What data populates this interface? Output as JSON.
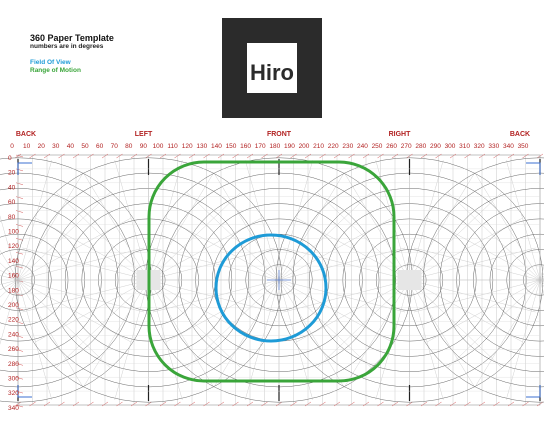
{
  "header": {
    "title": "360 Paper Template",
    "subtitle": "numbers are in degrees"
  },
  "legend": {
    "field_of_view": "Field Of View",
    "range_of_motion": "Range of Motion"
  },
  "marker": {
    "label": "Hiro"
  },
  "directions": [
    "BACK",
    "LEFT",
    "FRONT",
    "RIGHT",
    "BACK"
  ],
  "top_ticks": [
    "0",
    "10",
    "20",
    "30",
    "40",
    "50",
    "60",
    "70",
    "80",
    "90",
    "100",
    "110",
    "120",
    "130",
    "140",
    "150",
    "160",
    "170",
    "180",
    "190",
    "200",
    "210",
    "220",
    "230",
    "240",
    "250",
    "260",
    "270",
    "280",
    "290",
    "300",
    "310",
    "320",
    "330",
    "340",
    "350"
  ],
  "left_ticks": [
    "0",
    "20",
    "40",
    "60",
    "80",
    "100",
    "120",
    "140",
    "160",
    "180",
    "200",
    "220",
    "240",
    "260",
    "280",
    "300",
    "320",
    "340"
  ],
  "colors": {
    "field_of_view": "#1e9bd7",
    "range_of_motion": "#3aa53a",
    "labels": "#b22222"
  }
}
